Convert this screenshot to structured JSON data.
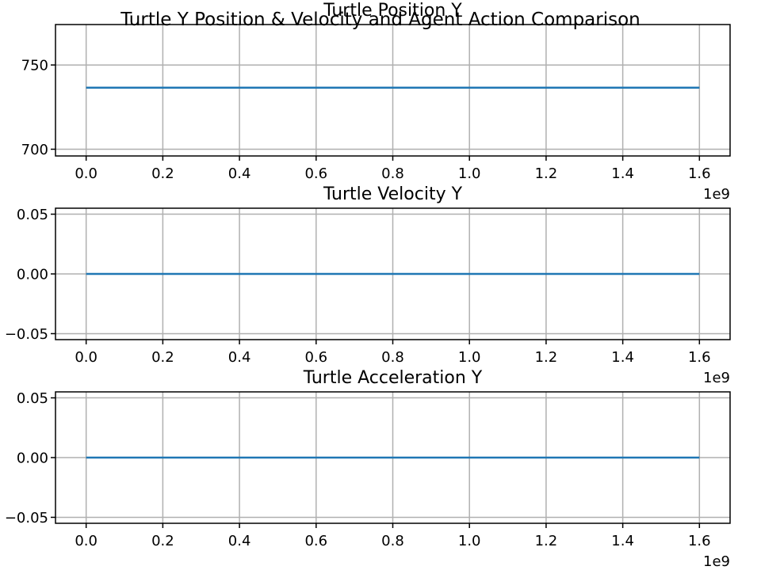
{
  "figure": {
    "suptitle": "Turtle Y Position & Velocity and Agent Action Comparison",
    "line_color": "#1f77b4",
    "grid_color": "#b0b0b0"
  },
  "chart_data": [
    {
      "type": "line",
      "title": "Turtle Position Y",
      "xlim": [
        -80000000,
        1680000000
      ],
      "ylim": [
        696,
        774
      ],
      "x_ticks": [
        0,
        200000000,
        400000000,
        600000000,
        800000000,
        1000000000,
        1200000000,
        1400000000,
        1600000000
      ],
      "x_tick_labels": [
        "0.0",
        "0.2",
        "0.4",
        "0.6",
        "0.8",
        "1.0",
        "1.2",
        "1.4",
        "1.6"
      ],
      "x_offset_label": "1e9",
      "y_ticks": [
        700,
        750
      ],
      "y_tick_labels": [
        "700",
        "750"
      ],
      "grid": true,
      "series": [
        {
          "x": [
            0,
            1600000000
          ],
          "y": [
            736.5,
            736.5
          ]
        }
      ]
    },
    {
      "type": "line",
      "title": "Turtle Velocity Y",
      "xlim": [
        -80000000,
        1680000000
      ],
      "ylim": [
        -0.055,
        0.055
      ],
      "x_ticks": [
        0,
        200000000,
        400000000,
        600000000,
        800000000,
        1000000000,
        1200000000,
        1400000000,
        1600000000
      ],
      "x_tick_labels": [
        "0.0",
        "0.2",
        "0.4",
        "0.6",
        "0.8",
        "1.0",
        "1.2",
        "1.4",
        "1.6"
      ],
      "x_offset_label": "1e9",
      "y_ticks": [
        -0.05,
        0,
        0.05
      ],
      "y_tick_labels": [
        "−0.05",
        "0.00",
        "0.05"
      ],
      "grid": true,
      "series": [
        {
          "x": [
            0,
            1600000000
          ],
          "y": [
            0,
            0
          ]
        }
      ]
    },
    {
      "type": "line",
      "title": "Turtle Acceleration Y",
      "xlim": [
        -80000000,
        1680000000
      ],
      "ylim": [
        -0.055,
        0.055
      ],
      "x_ticks": [
        0,
        200000000,
        400000000,
        600000000,
        800000000,
        1000000000,
        1200000000,
        1400000000,
        1600000000
      ],
      "x_tick_labels": [
        "0.0",
        "0.2",
        "0.4",
        "0.6",
        "0.8",
        "1.0",
        "1.2",
        "1.4",
        "1.6"
      ],
      "x_offset_label": "1e9",
      "y_ticks": [
        -0.05,
        0,
        0.05
      ],
      "y_tick_labels": [
        "−0.05",
        "0.00",
        "0.05"
      ],
      "grid": true,
      "series": [
        {
          "x": [
            0,
            1600000000
          ],
          "y": [
            0,
            0
          ]
        }
      ]
    }
  ]
}
